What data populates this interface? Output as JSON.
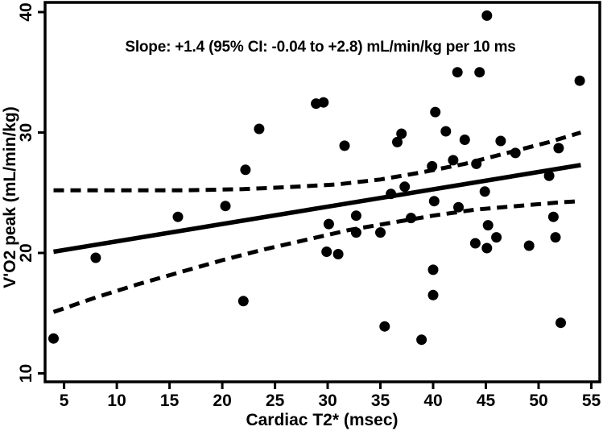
{
  "figure": {
    "background": "#ffffff",
    "line_color": "#000000",
    "marker_color": "#000000"
  },
  "chart_data": {
    "type": "scatter",
    "annotation": "Slope: +1.4 (95% CI: -0.04 to +2.8) mL/min/kg per 10 ms",
    "xlabel": "Cardiac T2* (msec)",
    "ylabel": "V'O2 peak (mL/min/kg)",
    "xlim": [
      3.2,
      55.8
    ],
    "ylim": [
      9.3,
      40.8
    ],
    "xticks": [
      5,
      10,
      15,
      20,
      25,
      30,
      35,
      40,
      45,
      50,
      55
    ],
    "yticks": [
      10,
      20,
      30,
      40
    ],
    "grid": false,
    "legend": "none",
    "points": [
      [
        4.0,
        12.9
      ],
      [
        8.0,
        19.6
      ],
      [
        15.8,
        23.0
      ],
      [
        20.3,
        23.9
      ],
      [
        22.0,
        16.0
      ],
      [
        22.2,
        26.9
      ],
      [
        23.5,
        30.3
      ],
      [
        28.9,
        32.4
      ],
      [
        29.6,
        32.5
      ],
      [
        29.9,
        20.1
      ],
      [
        30.1,
        22.4
      ],
      [
        31.0,
        19.9
      ],
      [
        31.6,
        28.9
      ],
      [
        32.7,
        23.1
      ],
      [
        32.7,
        21.7
      ],
      [
        35.0,
        21.7
      ],
      [
        35.4,
        13.9
      ],
      [
        36.0,
        24.9
      ],
      [
        36.6,
        29.2
      ],
      [
        37.0,
        29.9
      ],
      [
        37.3,
        25.5
      ],
      [
        37.9,
        22.9
      ],
      [
        38.9,
        12.8
      ],
      [
        39.9,
        27.2
      ],
      [
        40.0,
        18.6
      ],
      [
        40.0,
        16.5
      ],
      [
        40.1,
        24.3
      ],
      [
        40.2,
        31.7
      ],
      [
        41.2,
        30.1
      ],
      [
        41.9,
        27.7
      ],
      [
        42.3,
        35.0
      ],
      [
        42.4,
        23.8
      ],
      [
        43.0,
        29.4
      ],
      [
        44.0,
        20.8
      ],
      [
        44.1,
        27.4
      ],
      [
        44.4,
        35.0
      ],
      [
        44.9,
        25.1
      ],
      [
        45.1,
        39.7
      ],
      [
        45.1,
        20.4
      ],
      [
        45.2,
        22.3
      ],
      [
        46.0,
        21.3
      ],
      [
        46.4,
        29.3
      ],
      [
        47.8,
        28.3
      ],
      [
        49.1,
        20.6
      ],
      [
        51.0,
        26.4
      ],
      [
        51.4,
        23.0
      ],
      [
        51.6,
        21.3
      ],
      [
        51.9,
        28.7
      ],
      [
        52.1,
        14.2
      ],
      [
        53.9,
        34.3
      ]
    ],
    "regression_line": {
      "style": "solid",
      "slope_per_10ms": 1.4,
      "points": [
        [
          4.0,
          20.1
        ],
        [
          54.0,
          27.3
        ]
      ]
    },
    "ci_upper": {
      "style": "dashed",
      "points": [
        [
          4,
          25.2
        ],
        [
          10,
          25.2
        ],
        [
          16,
          25.2
        ],
        [
          22,
          25.3
        ],
        [
          27,
          25.5
        ],
        [
          31,
          25.7
        ],
        [
          35,
          26.1
        ],
        [
          39,
          26.7
        ],
        [
          43,
          27.4
        ],
        [
          47,
          28.3
        ],
        [
          51,
          29.2
        ],
        [
          54,
          30.0
        ]
      ]
    },
    "ci_lower": {
      "style": "dashed",
      "points": [
        [
          4,
          15.1
        ],
        [
          8,
          16.3
        ],
        [
          12,
          17.4
        ],
        [
          16,
          18.4
        ],
        [
          20,
          19.4
        ],
        [
          24,
          20.3
        ],
        [
          28,
          21.1
        ],
        [
          32,
          21.9
        ],
        [
          36,
          22.5
        ],
        [
          40,
          23.1
        ],
        [
          44,
          23.6
        ],
        [
          48,
          23.9
        ],
        [
          52,
          24.2
        ],
        [
          54,
          24.3
        ]
      ]
    }
  }
}
